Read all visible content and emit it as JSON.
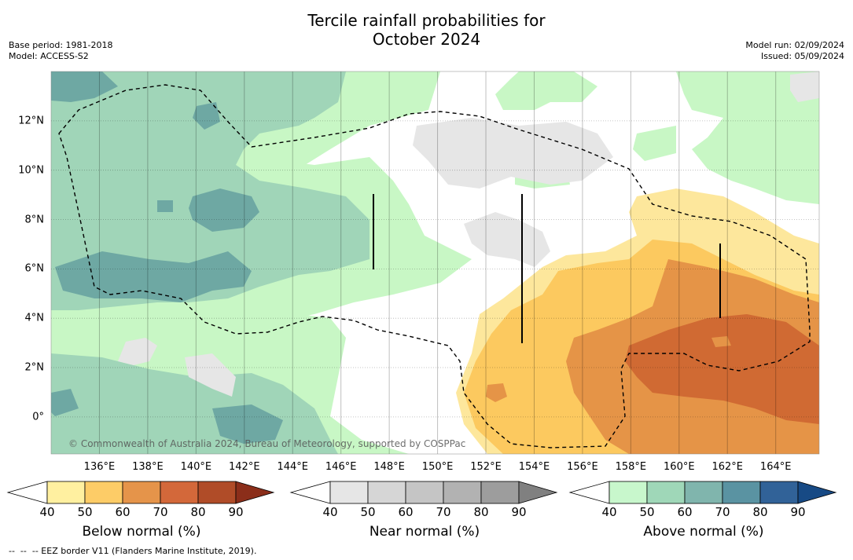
{
  "title_line1": "Tercile rainfall probabilities for",
  "title_line2": "October 2024",
  "base_period": "Base period: 1981-2018",
  "model": "Model: ACCESS-S2",
  "model_run": "Model run: 02/09/2024",
  "issued": "Issued: 05/09/2024",
  "copyright": "© Commonwealth of Australia 2024, Bureau of Meteorology, supported by COSPPac",
  "footnote": "--  --  -- EEZ border V11 (Flanders Marine Institute, 2019).",
  "map": {
    "lon_ticks": [
      "136°E",
      "138°E",
      "140°E",
      "142°E",
      "144°E",
      "146°E",
      "148°E",
      "150°E",
      "152°E",
      "154°E",
      "156°E",
      "158°E",
      "160°E",
      "162°E",
      "164°E"
    ],
    "lat_ticks": [
      "12°N",
      "10°N",
      "8°N",
      "6°N",
      "4°N",
      "2°N",
      "0°"
    ],
    "lon_range": [
      134.0,
      165.8
    ],
    "lat_range": [
      -1.5,
      14.0
    ],
    "grid": true,
    "colors": {
      "near_40": "#e6e6e6",
      "above_40": "#c8f7c5",
      "above_50": "#a0d5b8",
      "above_60": "#6ea8a3",
      "below_40": "#fde79c",
      "below_50": "#fcc95f",
      "below_60": "#e59447",
      "below_70": "#d06a33",
      "eez_line": "#000000"
    }
  },
  "colorbars": [
    {
      "name": "below-normal",
      "title": "Below normal (%)",
      "labels": [
        "40",
        "50",
        "60",
        "70",
        "80",
        "90"
      ],
      "colors": [
        "#fff0a0",
        "#fdcc67",
        "#e5944a",
        "#d3683a",
        "#b04c28",
        "#8b2e1a"
      ]
    },
    {
      "name": "near-normal",
      "title": "Near normal (%)",
      "labels": [
        "40",
        "50",
        "60",
        "70",
        "80",
        "90"
      ],
      "colors": [
        "#e6e6e6",
        "#d6d6d6",
        "#c5c5c5",
        "#b2b2b2",
        "#9d9d9d",
        "#808080"
      ]
    },
    {
      "name": "above-normal",
      "title": "Above normal (%)",
      "labels": [
        "40",
        "50",
        "60",
        "70",
        "80",
        "90"
      ],
      "colors": [
        "#c8f7cc",
        "#9fd7b8",
        "#80b5ad",
        "#5a93a2",
        "#316298",
        "#174a85"
      ]
    }
  ]
}
